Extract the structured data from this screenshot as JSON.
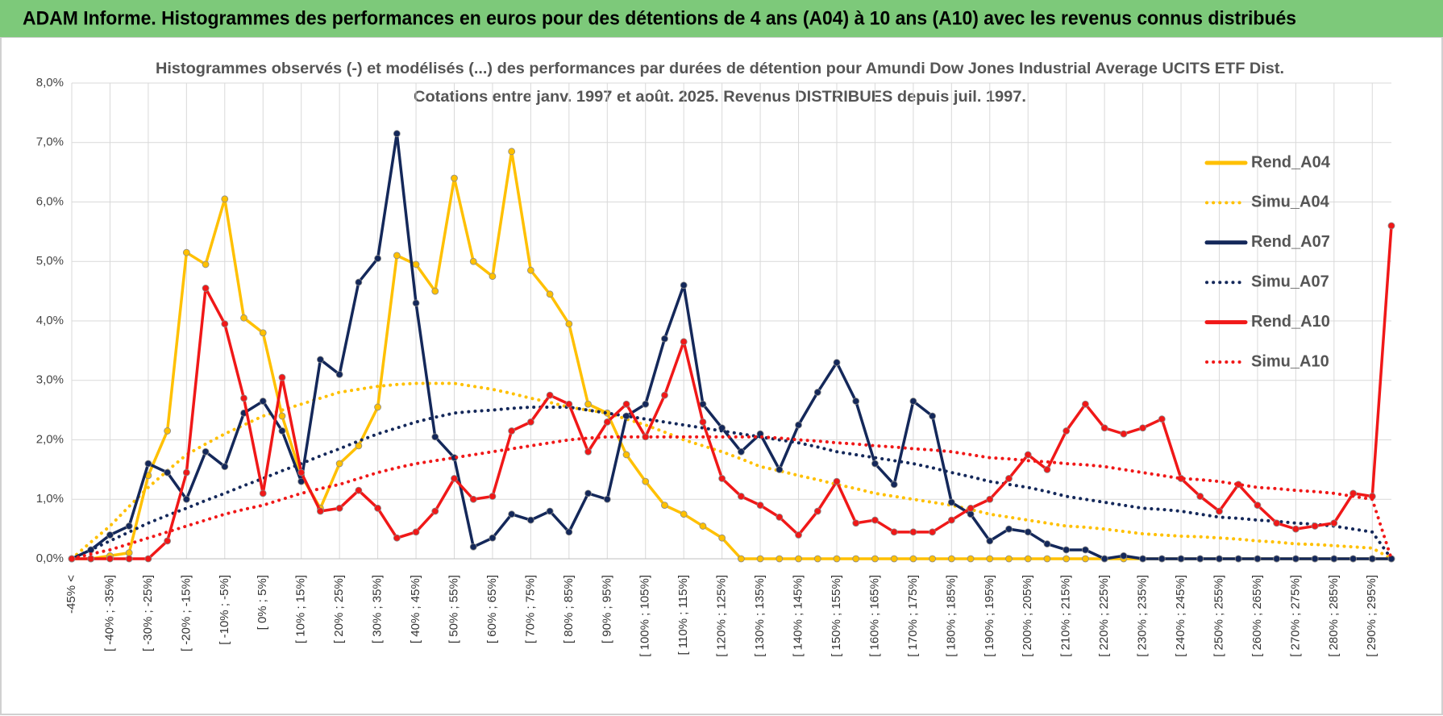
{
  "header": {
    "title": "ADAM Informe. Histogrammes des performances en euros pour des détentions de 4 ans (A04) à 10 ans (A10) avec les revenus connus distribués"
  },
  "chart_data": {
    "type": "line",
    "title": [
      "Histogrammes observés (-) et modélisés (...) des performances par durées de détention pour Amundi Dow Jones Industrial Average UCITS ETF Dist.",
      "Cotations entre janv. 1997 et août. 2025. Revenus DISTRIBUES depuis juil. 1997."
    ],
    "categories": [
      "-45% <",
      null,
      "[ -40% ; -35%]",
      null,
      "[ -30% ; -25%]",
      null,
      "[ -20% ; -15%]",
      null,
      "[ -10% ; -5%]",
      null,
      "[ 0% ; 5%]",
      null,
      "[ 10% ; 15%]",
      null,
      "[ 20% ; 25%]",
      null,
      "[ 30% ; 35%]",
      null,
      "[ 40% ; 45%]",
      null,
      "[ 50% ; 55%]",
      null,
      "[ 60% ; 65%]",
      null,
      "[ 70% ; 75%]",
      null,
      "[ 80% ; 85%]",
      null,
      "[ 90% ; 95%]",
      null,
      "[ 100% ; 105%]",
      null,
      "[ 110% ; 115%]",
      null,
      "[ 120% ; 125%]",
      null,
      "[ 130% ; 135%]",
      null,
      "[ 140% ; 145%]",
      null,
      "[ 150% ; 155%]",
      null,
      "[ 160% ; 165%]",
      null,
      "[ 170% ; 175%]",
      null,
      "[ 180% ; 185%]",
      null,
      "[ 190% ; 195%]",
      null,
      "[ 200% ; 205%]",
      null,
      "[ 210% ; 215%]",
      null,
      "[ 220% ; 225%]",
      null,
      "[ 230% ; 235%]",
      null,
      "[ 240% ; 245%]",
      null,
      "[ 250% ; 255%]",
      null,
      "[ 260% ; 265%]",
      null,
      "[ 270% ; 275%]",
      null,
      "[ 280% ; 285%]",
      null,
      "[ 290% ; 295%]",
      null
    ],
    "series": [
      {
        "name": "Rend_A04",
        "color": "#ffc000",
        "style": "solid",
        "marker": true,
        "values": [
          0,
          0,
          0.05,
          0.1,
          1.4,
          2.15,
          5.15,
          4.95,
          6.05,
          4.05,
          3.8,
          2.4,
          1.4,
          0.85,
          1.6,
          1.9,
          2.55,
          5.1,
          4.95,
          4.5,
          6.4,
          5.0,
          4.75,
          6.85,
          4.85,
          4.45,
          3.95,
          2.6,
          2.45,
          1.75,
          1.3,
          0.9,
          0.75,
          0.55,
          0.35,
          0,
          0,
          0,
          0,
          0,
          0,
          0,
          0,
          0,
          0,
          0,
          0,
          0,
          0,
          0,
          0,
          0,
          0,
          0,
          0,
          0,
          0,
          0,
          0,
          0,
          0,
          0,
          0,
          0,
          0,
          0,
          0,
          0,
          0,
          0
        ]
      },
      {
        "name": "Simu_A04",
        "color": "#ffc000",
        "style": "dotted",
        "marker": false,
        "values": [
          0,
          0.28,
          0.55,
          0.88,
          1.2,
          1.48,
          1.75,
          1.93,
          2.1,
          2.25,
          2.4,
          2.5,
          2.6,
          2.7,
          2.8,
          2.85,
          2.9,
          2.93,
          2.95,
          2.95,
          2.95,
          2.9,
          2.85,
          2.78,
          2.7,
          2.63,
          2.55,
          2.5,
          2.45,
          2.35,
          2.25,
          2.13,
          2.0,
          1.9,
          1.8,
          1.68,
          1.55,
          1.48,
          1.4,
          1.33,
          1.25,
          1.18,
          1.1,
          1.05,
          1.0,
          0.95,
          0.9,
          0.83,
          0.75,
          0.7,
          0.65,
          0.6,
          0.55,
          0.53,
          0.5,
          0.46,
          0.42,
          0.4,
          0.38,
          0.37,
          0.35,
          0.33,
          0.3,
          0.28,
          0.25,
          0.24,
          0.22,
          0.2,
          0.18,
          0
        ]
      },
      {
        "name": "Rend_A07",
        "color": "#14285a",
        "style": "solid",
        "marker": true,
        "values": [
          0,
          0.15,
          0.4,
          0.55,
          1.6,
          1.45,
          1.0,
          1.8,
          1.55,
          2.45,
          2.65,
          2.15,
          1.3,
          3.35,
          3.1,
          4.65,
          5.05,
          7.15,
          4.3,
          2.05,
          1.7,
          0.2,
          0.35,
          0.75,
          0.65,
          0.8,
          0.45,
          1.1,
          1.0,
          2.4,
          2.6,
          3.7,
          4.6,
          2.6,
          2.2,
          1.8,
          2.1,
          1.5,
          2.25,
          2.8,
          3.3,
          2.65,
          1.6,
          1.25,
          2.65,
          2.4,
          0.95,
          0.75,
          0.3,
          0.5,
          0.45,
          0.25,
          0.15,
          0.15,
          0,
          0.05,
          0,
          0,
          0,
          0,
          0,
          0,
          0,
          0,
          0,
          0,
          0,
          0,
          0,
          0
        ]
      },
      {
        "name": "Simu_A07",
        "color": "#14285a",
        "style": "dotted",
        "marker": false,
        "values": [
          0,
          0.15,
          0.3,
          0.45,
          0.6,
          0.73,
          0.85,
          0.98,
          1.1,
          1.23,
          1.35,
          1.48,
          1.6,
          1.73,
          1.85,
          1.98,
          2.1,
          2.2,
          2.3,
          2.38,
          2.45,
          2.48,
          2.5,
          2.53,
          2.55,
          2.55,
          2.55,
          2.5,
          2.45,
          2.4,
          2.35,
          2.3,
          2.25,
          2.2,
          2.15,
          2.1,
          2.05,
          2.0,
          1.95,
          1.88,
          1.8,
          1.75,
          1.7,
          1.65,
          1.6,
          1.53,
          1.45,
          1.38,
          1.3,
          1.25,
          1.2,
          1.13,
          1.05,
          1.0,
          0.95,
          0.9,
          0.85,
          0.83,
          0.8,
          0.75,
          0.7,
          0.68,
          0.65,
          0.63,
          0.6,
          0.58,
          0.55,
          0.5,
          0.45,
          0
        ]
      },
      {
        "name": "Rend_A10",
        "color": "#f01818",
        "style": "solid",
        "marker": true,
        "values": [
          0,
          0,
          0,
          0,
          0,
          0.3,
          1.45,
          4.55,
          3.95,
          2.7,
          1.1,
          3.05,
          1.45,
          0.8,
          0.85,
          1.15,
          0.85,
          0.35,
          0.45,
          0.8,
          1.35,
          1.0,
          1.05,
          2.15,
          2.3,
          2.75,
          2.6,
          1.8,
          2.3,
          2.6,
          2.05,
          2.75,
          3.65,
          2.3,
          1.35,
          1.05,
          0.9,
          0.7,
          0.4,
          0.8,
          1.3,
          0.6,
          0.65,
          0.45,
          0.45,
          0.45,
          0.65,
          0.85,
          1.0,
          1.35,
          1.75,
          1.5,
          2.15,
          2.6,
          2.2,
          2.1,
          2.2,
          2.35,
          1.35,
          1.05,
          0.8,
          1.25,
          0.9,
          0.6,
          0.5,
          0.55,
          0.6,
          1.1,
          1.05,
          5.6
        ]
      },
      {
        "name": "Simu_A10",
        "color": "#f01818",
        "style": "dotted",
        "marker": false,
        "values": [
          0,
          0.08,
          0.15,
          0.25,
          0.35,
          0.45,
          0.55,
          0.65,
          0.75,
          0.83,
          0.9,
          1.0,
          1.1,
          1.18,
          1.25,
          1.35,
          1.45,
          1.53,
          1.6,
          1.65,
          1.7,
          1.75,
          1.8,
          1.85,
          1.9,
          1.95,
          2.0,
          2.03,
          2.05,
          2.05,
          2.05,
          2.05,
          2.05,
          2.05,
          2.05,
          2.05,
          2.05,
          2.03,
          2.0,
          1.98,
          1.95,
          1.93,
          1.9,
          1.88,
          1.85,
          1.83,
          1.8,
          1.75,
          1.7,
          1.68,
          1.65,
          1.63,
          1.6,
          1.58,
          1.55,
          1.5,
          1.45,
          1.4,
          1.35,
          1.33,
          1.3,
          1.25,
          1.2,
          1.18,
          1.15,
          1.13,
          1.1,
          1.05,
          1.0,
          0
        ]
      }
    ],
    "ylim": [
      0,
      8
    ],
    "yticks": [
      {
        "value": 0,
        "label": "0,0%"
      },
      {
        "value": 1,
        "label": "1,0%"
      },
      {
        "value": 2,
        "label": "2,0%"
      },
      {
        "value": 3,
        "label": "3,0%"
      },
      {
        "value": 4,
        "label": "4,0%"
      },
      {
        "value": 5,
        "label": "5,0%"
      },
      {
        "value": 6,
        "label": "6,0%"
      },
      {
        "value": 7,
        "label": "7,0%"
      },
      {
        "value": 8,
        "label": "8,0%"
      }
    ],
    "grid": true,
    "legend": "right"
  }
}
